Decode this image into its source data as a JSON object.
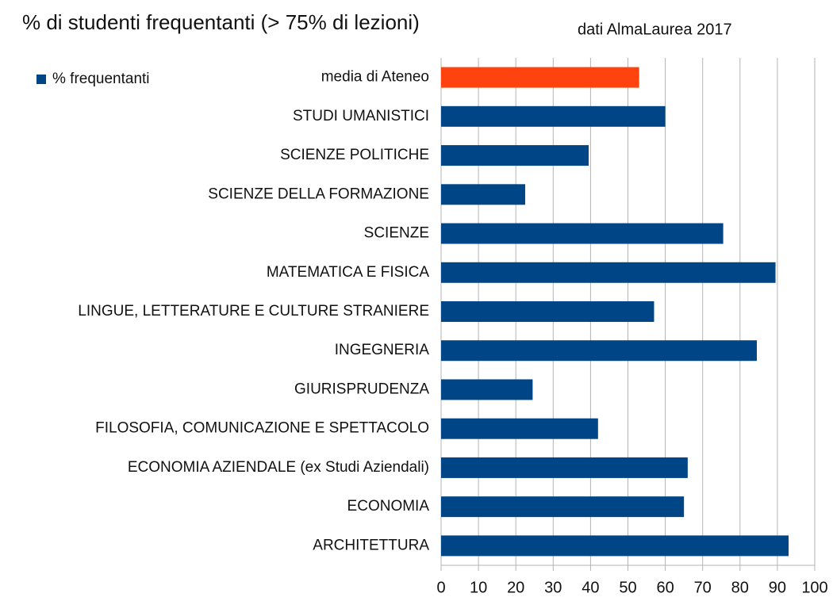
{
  "chart_data": {
    "type": "barh",
    "title": "% di studenti frequentanti (> 75% di lezioni)",
    "subtitle": "dati AlmaLaurea 2017",
    "categories": [
      "media di Ateneo",
      "STUDI UMANISTICI",
      "SCIENZE POLITICHE",
      "SCIENZE DELLA FORMAZIONE",
      "SCIENZE",
      "MATEMATICA E FISICA",
      "LINGUE, LETTERATURE E CULTURE STRANIERE",
      "INGEGNERIA",
      "GIURISPRUDENZA",
      "FILOSOFIA, COMUNICAZIONE E SPETTACOLO",
      "ECONOMIA AZIENDALE (ex Studi Aziendali)",
      "ECONOMIA",
      "ARCHITETTURA"
    ],
    "series": [
      {
        "name": "% frequentanti",
        "color": "#004586",
        "colors": [
          "#ff420e",
          "#004586",
          "#004586",
          "#004586",
          "#004586",
          "#004586",
          "#004586",
          "#004586",
          "#004586",
          "#004586",
          "#004586",
          "#004586",
          "#004586"
        ],
        "values": [
          53,
          60,
          39.5,
          22.5,
          75.5,
          89.5,
          57,
          84.5,
          24.5,
          42,
          66,
          65,
          93
        ]
      }
    ],
    "xlim": [
      0,
      100
    ],
    "xticks": [
      0,
      10,
      20,
      30,
      40,
      50,
      60,
      70,
      80,
      90,
      100
    ],
    "grid": true,
    "legend": "top-left"
  }
}
